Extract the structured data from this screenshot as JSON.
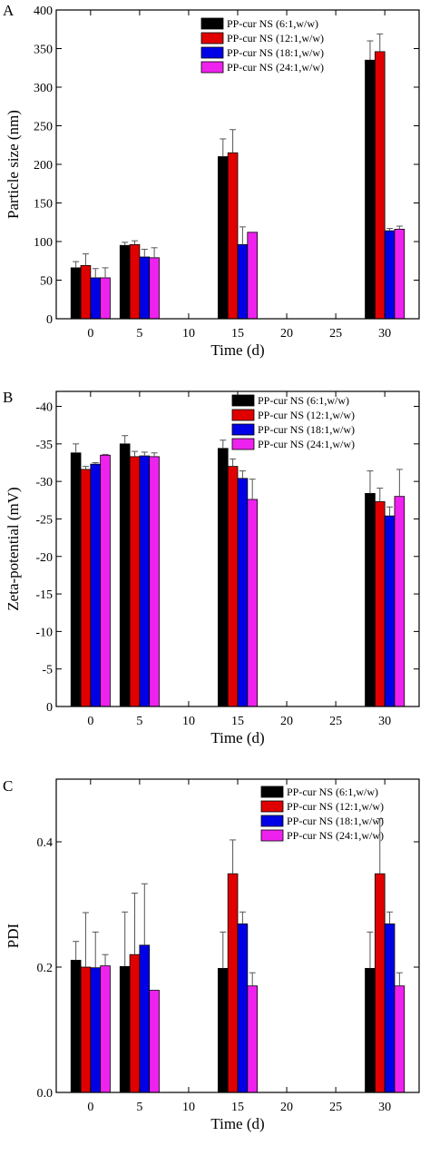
{
  "colors": {
    "series": [
      "#000000",
      "#e00000",
      "#0000e6",
      "#ee22ee"
    ]
  },
  "chart_data": [
    {
      "type": "bar",
      "panel_label": "A",
      "xlabel": "Time (d)",
      "ylabel": "Particle size (nm)",
      "xlim": [
        -3.5,
        33.5
      ],
      "xticks": [
        0,
        5,
        10,
        15,
        20,
        25,
        30
      ],
      "ylim": [
        0,
        400
      ],
      "yticks": [
        0,
        50,
        100,
        150,
        200,
        250,
        300,
        350,
        400
      ],
      "ytick_labels": [
        "0",
        "50",
        "100",
        "150",
        "200",
        "250",
        "300",
        "350",
        "400"
      ],
      "x": [
        0,
        5,
        15,
        30
      ],
      "legend_position": "top-center",
      "series": [
        {
          "name": "PP-cur NS (6:1,w/w)",
          "values": [
            66,
            95,
            210,
            335
          ],
          "errors": [
            8,
            4,
            23,
            25
          ]
        },
        {
          "name": "PP-cur NS (12:1,w/w)",
          "values": [
            69,
            96,
            215,
            346
          ],
          "errors": [
            15,
            5,
            30,
            23
          ]
        },
        {
          "name": "PP-cur NS (18:1,w/w)",
          "values": [
            53,
            80,
            96,
            114
          ],
          "errors": [
            12,
            10,
            23,
            3
          ]
        },
        {
          "name": "PP-cur NS (24:1,w/w)",
          "values": [
            53,
            79,
            112,
            116
          ],
          "errors": [
            13,
            13,
            0,
            4
          ]
        }
      ]
    },
    {
      "type": "bar",
      "panel_label": "B",
      "xlabel": "Time (d)",
      "ylabel": "Zeta-potential (mV)",
      "xlim": [
        -3.5,
        33.5
      ],
      "xticks": [
        0,
        5,
        10,
        15,
        20,
        25,
        30
      ],
      "ylim": [
        0,
        -42
      ],
      "yticks": [
        0,
        -5,
        -10,
        -15,
        -20,
        -25,
        -30,
        -35,
        -40
      ],
      "ytick_labels": [
        "0",
        "-5",
        "-10",
        "-15",
        "-20",
        "-25",
        "-30",
        "-35",
        "-40"
      ],
      "x": [
        0,
        5,
        15,
        30
      ],
      "legend_position": "top-right",
      "series": [
        {
          "name": "PP-cur NS (6:1,w/w)",
          "values": [
            -33.8,
            -35.0,
            -34.4,
            -28.4
          ],
          "errors": [
            1.2,
            1.1,
            1.1,
            3.0
          ]
        },
        {
          "name": "PP-cur NS (12:1,w/w)",
          "values": [
            -31.6,
            -33.3,
            -32.0,
            -27.3
          ],
          "errors": [
            0.4,
            0.7,
            1.0,
            1.8
          ]
        },
        {
          "name": "PP-cur NS (18:1,w/w)",
          "values": [
            -32.3,
            -33.4,
            -30.4,
            -25.4
          ],
          "errors": [
            0.2,
            0.5,
            1.0,
            1.2
          ]
        },
        {
          "name": "PP-cur NS (24:1,w/w)",
          "values": [
            -33.5,
            -33.3,
            -27.6,
            -28.0
          ],
          "errors": [
            0.1,
            0.5,
            2.7,
            3.6
          ]
        }
      ]
    },
    {
      "type": "bar",
      "panel_label": "C",
      "xlabel": "Time (d)",
      "ylabel": "PDI",
      "xlim": [
        -3.5,
        33.5
      ],
      "xticks": [
        0,
        5,
        10,
        15,
        20,
        25,
        30
      ],
      "ylim": [
        0,
        0.5
      ],
      "yticks": [
        0,
        0.2,
        0.4
      ],
      "ytick_labels": [
        "0.0",
        "0.2",
        "0.4"
      ],
      "x": [
        0,
        5,
        15,
        30
      ],
      "legend_position": "top-right",
      "series": [
        {
          "name": "PP-cur NS (6:1,w/w)",
          "values": [
            0.211,
            0.201,
            0.198,
            0.198
          ],
          "errors": [
            0.03,
            0.087,
            0.058,
            0.058
          ]
        },
        {
          "name": "PP-cur NS (12:1,w/w)",
          "values": [
            0.2,
            0.22,
            0.349,
            0.349
          ],
          "errors": [
            0.087,
            0.098,
            0.054,
            0.088
          ]
        },
        {
          "name": "PP-cur NS (18:1,w/w)",
          "values": [
            0.199,
            0.235,
            0.269,
            0.269
          ],
          "errors": [
            0.057,
            0.098,
            0.019,
            0.019
          ]
        },
        {
          "name": "PP-cur NS (24:1,w/w)",
          "values": [
            0.202,
            0.163,
            0.17,
            0.17
          ],
          "errors": [
            0.018,
            0.0,
            0.021,
            0.021
          ]
        }
      ]
    }
  ]
}
